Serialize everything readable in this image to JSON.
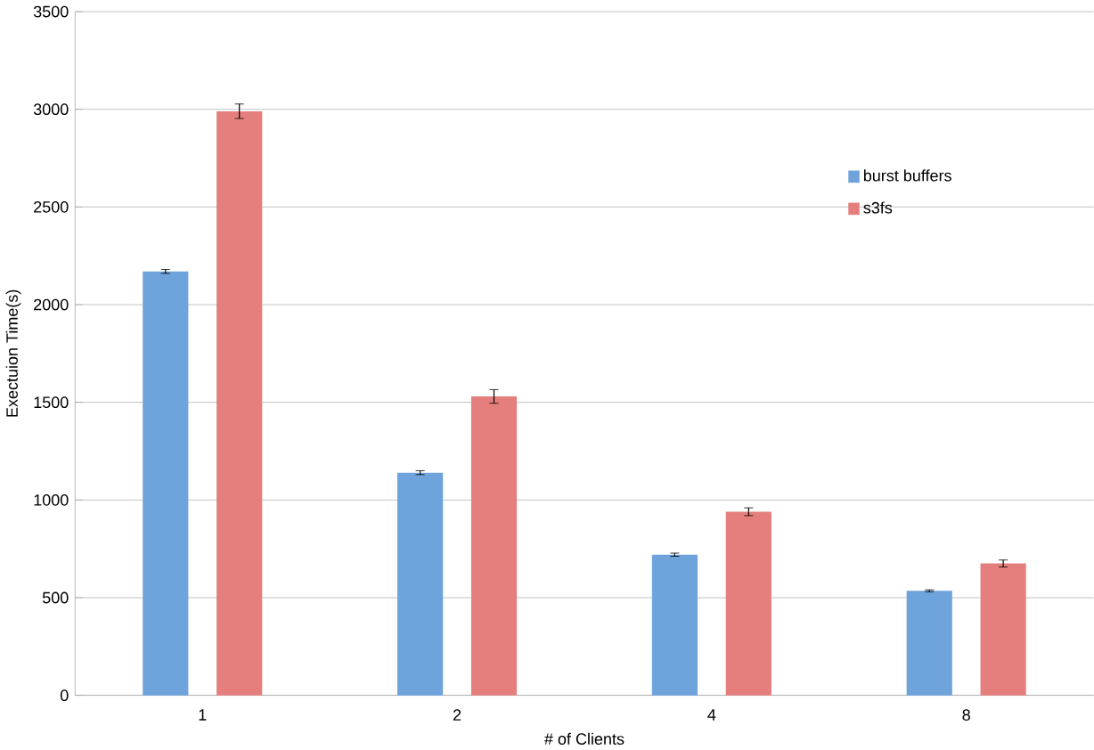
{
  "chart_data": {
    "type": "bar",
    "xlabel": "# of Clients",
    "ylabel": "Exectuion Time(s)",
    "categories": [
      "1",
      "2",
      "4",
      "8"
    ],
    "series": [
      {
        "name": "burst buffers",
        "color": "#6fa3dc",
        "values": [
          2170,
          1140,
          720,
          535
        ],
        "errors": [
          10,
          10,
          8,
          5
        ]
      },
      {
        "name": "s3fs",
        "color": "#e47f7d",
        "values": [
          2990,
          1530,
          940,
          675
        ],
        "errors": [
          37,
          35,
          20,
          18
        ]
      }
    ],
    "ylim": [
      0,
      3500
    ],
    "yticks": [
      0,
      500,
      1000,
      1500,
      2000,
      2500,
      3000,
      3500
    ],
    "grid": "y",
    "legend": "top right"
  }
}
